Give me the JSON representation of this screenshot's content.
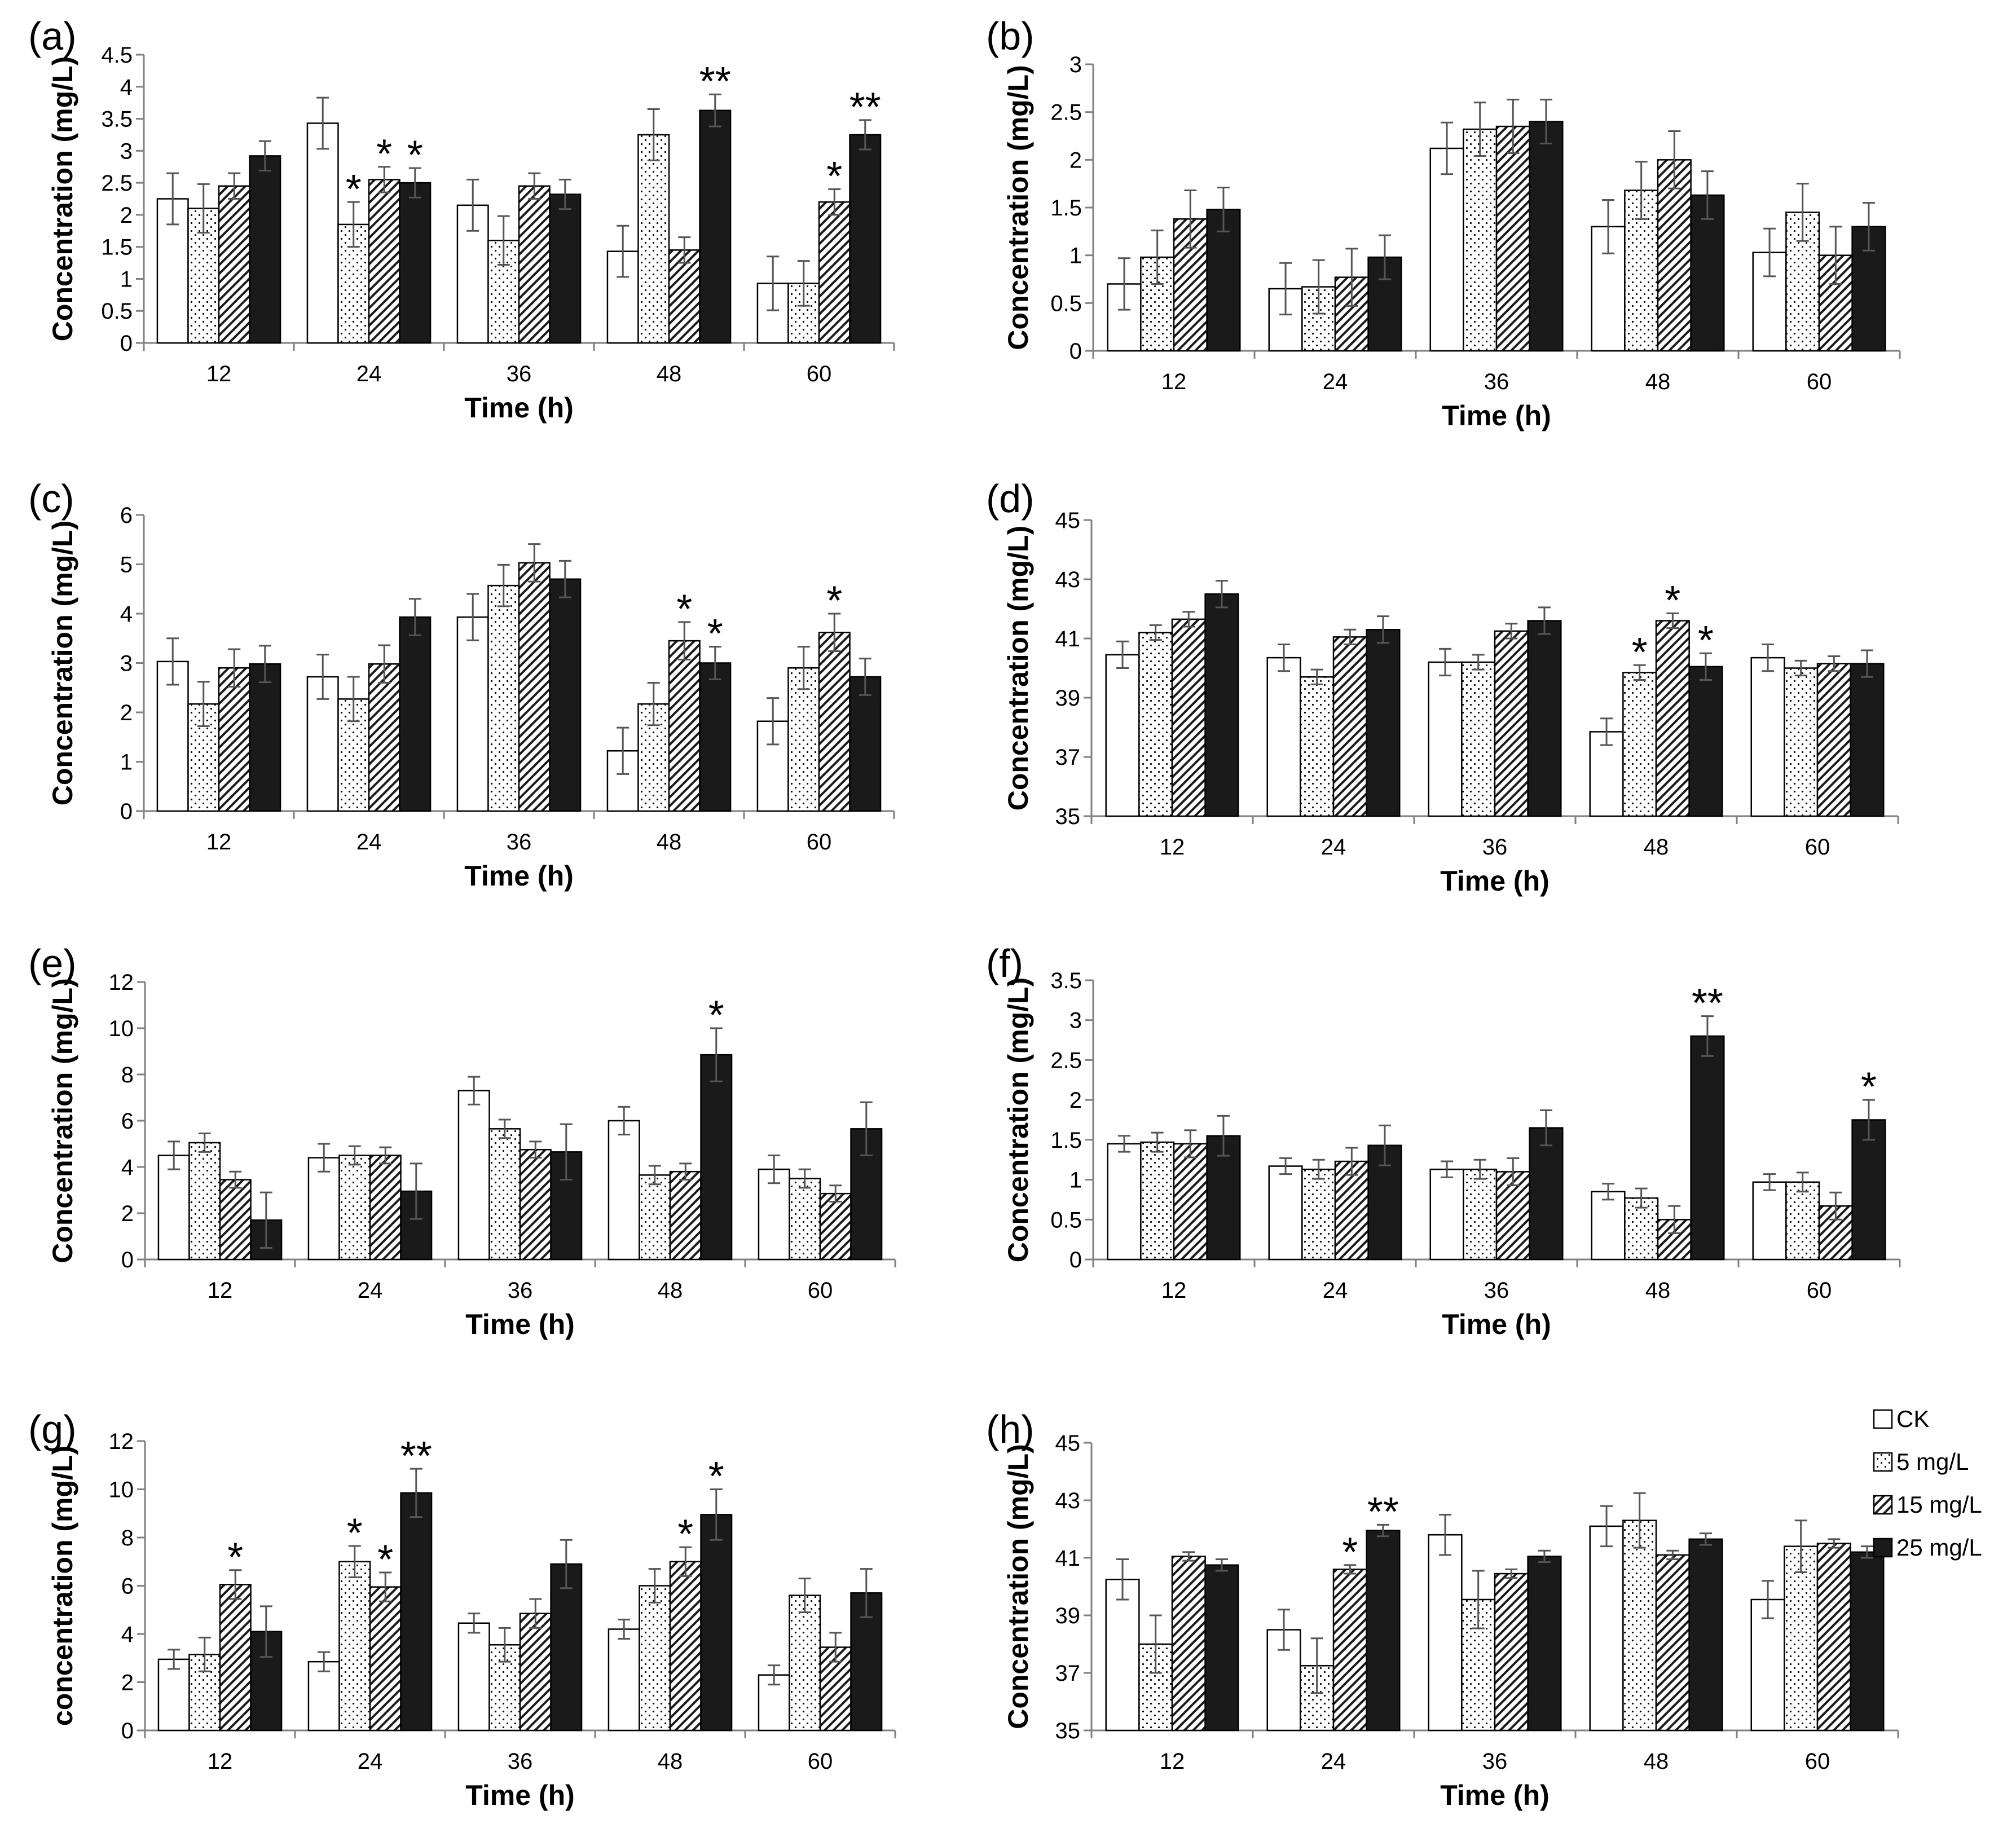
{
  "legend": {
    "position": "right of panel (h)",
    "series": [
      {
        "name": "CK",
        "pattern": "white"
      },
      {
        "name": "5 mg/L",
        "pattern": "dots"
      },
      {
        "name": "15 mg/L",
        "pattern": "hatch"
      },
      {
        "name": "25 mg/L",
        "pattern": "black"
      }
    ]
  },
  "colors": {
    "bar_stroke": "#000000",
    "error_bar": "#555555",
    "fill_black": "#1a1a1a",
    "axis": "#808080"
  },
  "chart_data": [
    {
      "panel": "(a)",
      "type": "bar",
      "grid": false,
      "xlabel": "Time (h)",
      "ylabel": "Concentration (mg/L)",
      "ylim": [
        0,
        4.5
      ],
      "yticks": [
        "0",
        "0.5",
        "1",
        "1.5",
        "2",
        "2.5",
        "3",
        "3.5",
        "4",
        "4.5"
      ],
      "categories": [
        "12",
        "24",
        "36",
        "48",
        "60"
      ],
      "series": [
        {
          "values": [
            2.25,
            3.43,
            2.15,
            1.43,
            0.93
          ],
          "errors": [
            0.4,
            0.4,
            0.4,
            0.4,
            0.42
          ],
          "sig": [
            "",
            "",
            "",
            "",
            ""
          ]
        },
        {
          "values": [
            2.1,
            1.85,
            1.6,
            3.25,
            0.93
          ],
          "errors": [
            0.38,
            0.35,
            0.38,
            0.4,
            0.35
          ],
          "sig": [
            "",
            "*",
            "",
            "",
            ""
          ]
        },
        {
          "values": [
            2.45,
            2.55,
            2.45,
            1.45,
            2.2
          ],
          "errors": [
            0.2,
            0.2,
            0.2,
            0.2,
            0.2
          ],
          "sig": [
            "",
            "*",
            "",
            "",
            "*"
          ]
        },
        {
          "values": [
            2.92,
            2.5,
            2.32,
            3.63,
            3.25
          ],
          "errors": [
            0.23,
            0.23,
            0.23,
            0.25,
            0.23
          ],
          "sig": [
            "",
            "*",
            "",
            "**",
            "**"
          ]
        }
      ]
    },
    {
      "panel": "(b)",
      "type": "bar",
      "grid": false,
      "xlabel": "Time (h)",
      "ylabel": "Concentration (mg/L)",
      "ylim": [
        0,
        3
      ],
      "yticks": [
        "0",
        "0.5",
        "1",
        "1.5",
        "2",
        "2.5",
        "3"
      ],
      "categories": [
        "12",
        "24",
        "36",
        "48",
        "60"
      ],
      "series": [
        {
          "values": [
            0.7,
            0.65,
            2.12,
            1.3,
            1.03
          ],
          "errors": [
            0.27,
            0.27,
            0.27,
            0.28,
            0.25
          ],
          "sig": [
            "",
            "",
            "",
            "",
            ""
          ]
        },
        {
          "values": [
            0.98,
            0.67,
            2.32,
            1.68,
            1.45
          ],
          "errors": [
            0.28,
            0.28,
            0.28,
            0.3,
            0.3
          ],
          "sig": [
            "",
            "",
            "",
            "",
            ""
          ]
        },
        {
          "values": [
            1.38,
            0.77,
            2.35,
            2.0,
            1.0
          ],
          "errors": [
            0.3,
            0.3,
            0.28,
            0.3,
            0.3
          ],
          "sig": [
            "",
            "",
            "",
            "",
            ""
          ]
        },
        {
          "values": [
            1.48,
            0.98,
            2.4,
            1.63,
            1.3
          ],
          "errors": [
            0.23,
            0.23,
            0.23,
            0.25,
            0.25
          ],
          "sig": [
            "",
            "",
            "",
            "",
            ""
          ]
        }
      ]
    },
    {
      "panel": "(c)",
      "type": "bar",
      "grid": false,
      "xlabel": "Time (h)",
      "ylabel": "Concentration (mg/L)",
      "ylim": [
        0,
        6
      ],
      "yticks": [
        "0",
        "1",
        "2",
        "3",
        "4",
        "5",
        "6"
      ],
      "categories": [
        "12",
        "24",
        "36",
        "48",
        "60"
      ],
      "series": [
        {
          "values": [
            3.03,
            2.72,
            3.93,
            1.22,
            1.82
          ],
          "errors": [
            0.47,
            0.45,
            0.47,
            0.47,
            0.47
          ],
          "sig": [
            "",
            "",
            "",
            "",
            ""
          ]
        },
        {
          "values": [
            2.17,
            2.27,
            4.57,
            2.17,
            2.9
          ],
          "errors": [
            0.45,
            0.45,
            0.42,
            0.43,
            0.43
          ],
          "sig": [
            "",
            "",
            "",
            "",
            ""
          ]
        },
        {
          "values": [
            2.9,
            2.98,
            5.03,
            3.45,
            3.62
          ],
          "errors": [
            0.38,
            0.38,
            0.38,
            0.38,
            0.38
          ],
          "sig": [
            "",
            "",
            "",
            "*",
            "*"
          ]
        },
        {
          "values": [
            2.98,
            3.93,
            4.7,
            3.0,
            2.72
          ],
          "errors": [
            0.37,
            0.37,
            0.37,
            0.33,
            0.37
          ],
          "sig": [
            "",
            "",
            "",
            "*",
            ""
          ]
        }
      ]
    },
    {
      "panel": "(d)",
      "type": "bar",
      "grid": false,
      "xlabel": "Time (h)",
      "ylabel": "Concentration (mg/L)",
      "ylim": [
        35,
        45
      ],
      "yticks": [
        "35",
        "37",
        "39",
        "41",
        "43",
        "45"
      ],
      "categories": [
        "12",
        "24",
        "36",
        "48",
        "60"
      ],
      "series": [
        {
          "values": [
            40.45,
            40.35,
            40.2,
            37.85,
            40.35
          ],
          "errors": [
            0.45,
            0.45,
            0.45,
            0.45,
            0.45
          ],
          "sig": [
            "",
            "",
            "",
            "",
            ""
          ]
        },
        {
          "values": [
            41.2,
            39.7,
            40.2,
            39.85,
            40.0
          ],
          "errors": [
            0.25,
            0.25,
            0.25,
            0.25,
            0.25
          ],
          "sig": [
            "",
            "",
            "",
            "*",
            ""
          ]
        },
        {
          "values": [
            41.65,
            41.05,
            41.25,
            41.6,
            40.15
          ],
          "errors": [
            0.25,
            0.25,
            0.25,
            0.25,
            0.25
          ],
          "sig": [
            "",
            "",
            "",
            "*",
            ""
          ]
        },
        {
          "values": [
            42.5,
            41.3,
            41.6,
            40.05,
            40.15
          ],
          "errors": [
            0.45,
            0.45,
            0.45,
            0.45,
            0.45
          ],
          "sig": [
            "",
            "",
            "",
            "*",
            ""
          ]
        }
      ]
    },
    {
      "panel": "(e)",
      "type": "bar",
      "grid": false,
      "xlabel": "Time (h)",
      "ylabel": "Concentration (mg/L)",
      "ylim": [
        0,
        12
      ],
      "yticks": [
        "0",
        "2",
        "4",
        "6",
        "8",
        "10",
        "12"
      ],
      "categories": [
        "12",
        "24",
        "36",
        "48",
        "60"
      ],
      "series": [
        {
          "values": [
            4.5,
            4.4,
            7.3,
            6.0,
            3.9
          ],
          "errors": [
            0.6,
            0.6,
            0.6,
            0.6,
            0.6
          ],
          "sig": [
            "",
            "",
            "",
            "",
            ""
          ]
        },
        {
          "values": [
            5.05,
            4.5,
            5.65,
            3.65,
            3.5
          ],
          "errors": [
            0.4,
            0.4,
            0.4,
            0.4,
            0.4
          ],
          "sig": [
            "",
            "",
            "",
            "",
            ""
          ]
        },
        {
          "values": [
            3.45,
            4.5,
            4.75,
            3.8,
            2.85
          ],
          "errors": [
            0.35,
            0.35,
            0.35,
            0.35,
            0.35
          ],
          "sig": [
            "",
            "",
            "",
            "",
            ""
          ]
        },
        {
          "values": [
            1.7,
            2.95,
            4.65,
            8.85,
            5.65
          ],
          "errors": [
            1.2,
            1.2,
            1.2,
            1.15,
            1.15
          ],
          "sig": [
            "",
            "",
            "",
            "*",
            ""
          ]
        }
      ]
    },
    {
      "panel": "(f)",
      "type": "bar",
      "grid": false,
      "xlabel": "Time (h)",
      "ylabel": "Concentration (mg/L)",
      "ylim": [
        0,
        3.5
      ],
      "yticks": [
        "0",
        "0.5",
        "1",
        "1.5",
        "2",
        "2.5",
        "3",
        "3.5"
      ],
      "categories": [
        "12",
        "24",
        "36",
        "48",
        "60"
      ],
      "series": [
        {
          "values": [
            1.45,
            1.17,
            1.13,
            0.85,
            0.97
          ],
          "errors": [
            0.1,
            0.1,
            0.1,
            0.1,
            0.1
          ],
          "sig": [
            "",
            "",
            "",
            "",
            ""
          ]
        },
        {
          "values": [
            1.47,
            1.13,
            1.13,
            0.77,
            0.97
          ],
          "errors": [
            0.12,
            0.12,
            0.12,
            0.12,
            0.12
          ],
          "sig": [
            "",
            "",
            "",
            "",
            ""
          ]
        },
        {
          "values": [
            1.45,
            1.23,
            1.1,
            0.5,
            0.67
          ],
          "errors": [
            0.17,
            0.17,
            0.17,
            0.17,
            0.17
          ],
          "sig": [
            "",
            "",
            "",
            "",
            ""
          ]
        },
        {
          "values": [
            1.55,
            1.43,
            1.65,
            2.8,
            1.75
          ],
          "errors": [
            0.25,
            0.25,
            0.22,
            0.25,
            0.25
          ],
          "sig": [
            "",
            "",
            "",
            "**",
            "*"
          ]
        }
      ]
    },
    {
      "panel": "(g)",
      "type": "bar",
      "grid": false,
      "xlabel": "Time (h)",
      "ylabel": "concentration (mg/L)",
      "ylim": [
        0,
        12
      ],
      "yticks": [
        "0",
        "2",
        "4",
        "6",
        "8",
        "10",
        "12"
      ],
      "categories": [
        "12",
        "24",
        "36",
        "48",
        "60"
      ],
      "series": [
        {
          "values": [
            2.95,
            2.85,
            4.45,
            4.2,
            2.3
          ],
          "errors": [
            0.4,
            0.4,
            0.4,
            0.4,
            0.4
          ],
          "sig": [
            "",
            "",
            "",
            "",
            ""
          ]
        },
        {
          "values": [
            3.15,
            7.0,
            3.55,
            6.0,
            5.6
          ],
          "errors": [
            0.7,
            0.65,
            0.7,
            0.7,
            0.7
          ],
          "sig": [
            "",
            "*",
            "",
            "",
            ""
          ]
        },
        {
          "values": [
            6.05,
            5.95,
            4.85,
            7.0,
            3.45
          ],
          "errors": [
            0.6,
            0.6,
            0.6,
            0.6,
            0.6
          ],
          "sig": [
            "*",
            "*",
            "",
            "*",
            ""
          ]
        },
        {
          "values": [
            4.1,
            9.85,
            6.9,
            8.95,
            5.7
          ],
          "errors": [
            1.05,
            1.0,
            1.0,
            1.05,
            1.0
          ],
          "sig": [
            "",
            "**",
            "",
            "*",
            ""
          ]
        }
      ]
    },
    {
      "panel": "(h)",
      "type": "bar",
      "grid": false,
      "xlabel": "Time (h)",
      "ylabel": "Concentration (mg/L)",
      "ylim": [
        35,
        45
      ],
      "yticks": [
        "35",
        "37",
        "39",
        "41",
        "43",
        "45"
      ],
      "categories": [
        "12",
        "24",
        "36",
        "48",
        "60"
      ],
      "series": [
        {
          "values": [
            40.25,
            38.5,
            41.8,
            42.1,
            39.55
          ],
          "errors": [
            0.7,
            0.7,
            0.7,
            0.7,
            0.65
          ],
          "sig": [
            "",
            "",
            "",
            "",
            ""
          ]
        },
        {
          "values": [
            38.0,
            37.25,
            39.55,
            42.3,
            41.4
          ],
          "errors": [
            1.0,
            0.95,
            1.0,
            0.95,
            0.9
          ],
          "sig": [
            "",
            "",
            "",
            "",
            ""
          ]
        },
        {
          "values": [
            41.05,
            40.6,
            40.45,
            41.1,
            41.5
          ],
          "errors": [
            0.15,
            0.15,
            0.15,
            0.15,
            0.15
          ],
          "sig": [
            "",
            "*",
            "",
            "",
            ""
          ]
        },
        {
          "values": [
            40.75,
            41.95,
            41.05,
            41.65,
            41.2
          ],
          "errors": [
            0.2,
            0.2,
            0.2,
            0.2,
            0.2
          ],
          "sig": [
            "",
            "**",
            "",
            "",
            ""
          ]
        }
      ]
    }
  ]
}
